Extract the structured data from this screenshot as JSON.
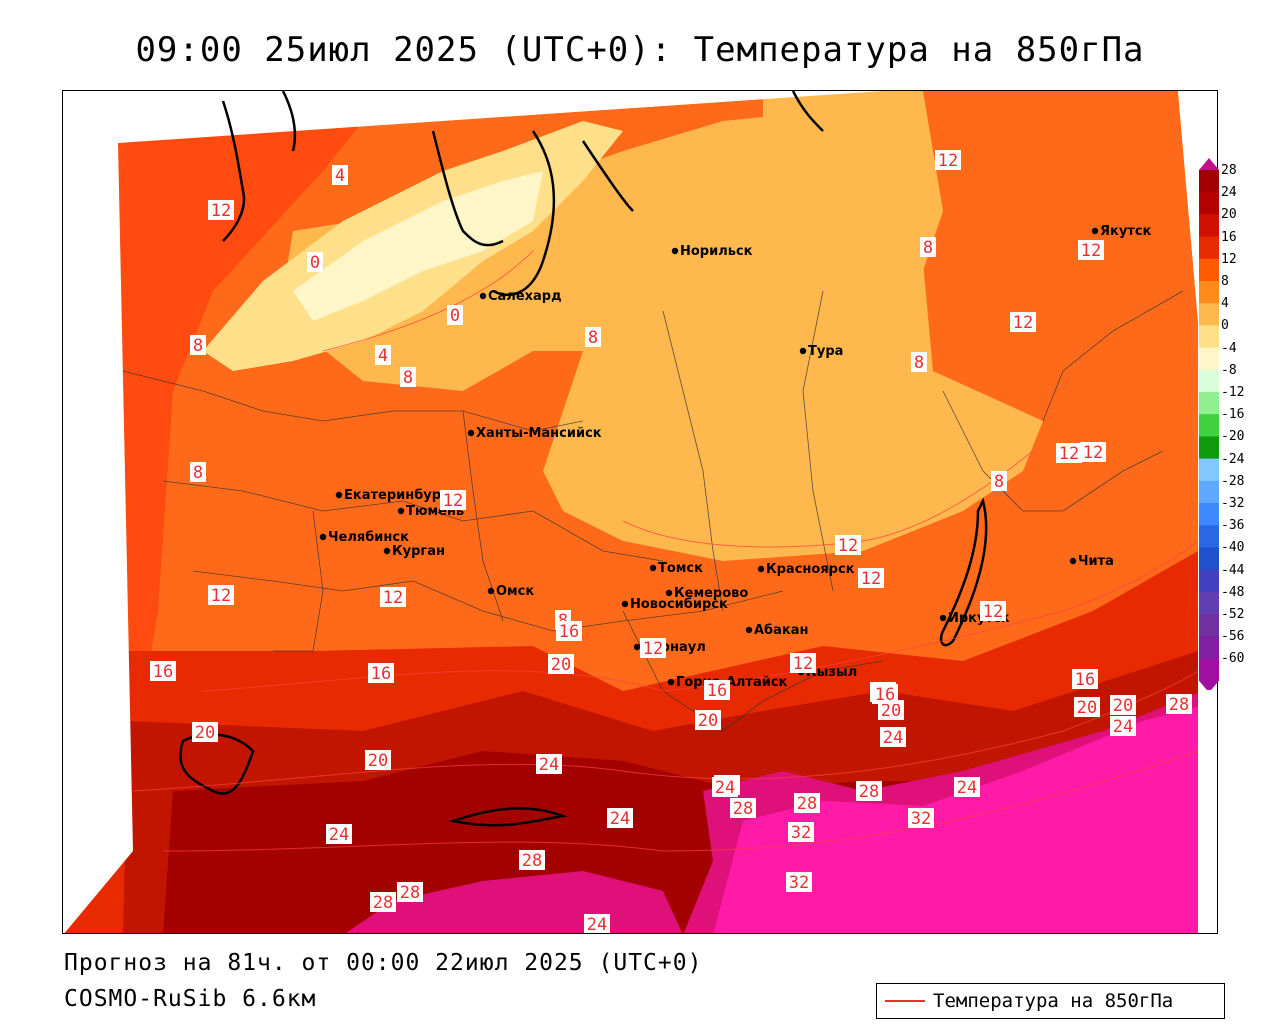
{
  "header": {
    "title": "09:00 25июл 2025 (UTC+0): Температура на 850гПа"
  },
  "footer": {
    "forecast": "Прогноз на 81ч. от 00:00 22июл 2025 (UTC+0)",
    "model": "COSMO-RuSib 6.6км"
  },
  "legend": {
    "line_label": "Температура на 850гПа",
    "line_color": "#e83030"
  },
  "colorbar": {
    "ticks": [
      "28",
      "24",
      "20",
      "16",
      "12",
      "8",
      "4",
      "0",
      "-4",
      "-8",
      "-12",
      "-16",
      "-20",
      "-24",
      "-28",
      "-32",
      "-36",
      "-40",
      "-44",
      "-48",
      "-52",
      "-56",
      "-60"
    ],
    "colors": [
      "#a00000",
      "#b50000",
      "#d01000",
      "#e82a00",
      "#ff5a00",
      "#ff8c1a",
      "#ffb84d",
      "#ffe08a",
      "#fff6c8",
      "#d8ffd8",
      "#90f090",
      "#40d040",
      "#109a10",
      "#80c8ff",
      "#60a8ff",
      "#4088ff",
      "#2a68e8",
      "#2050d0",
      "#4040c0",
      "#6040b0",
      "#7030a0",
      "#8020a0",
      "#a010a0"
    ]
  },
  "cities": [
    {
      "name": "Салехард"
    },
    {
      "name": "Норильск"
    },
    {
      "name": "Якутск"
    },
    {
      "name": "Тура"
    },
    {
      "name": "Ханты-Мансийск"
    },
    {
      "name": "Екатеринбург"
    },
    {
      "name": "Тюмень"
    },
    {
      "name": "Челябинск"
    },
    {
      "name": "Курган"
    },
    {
      "name": "Омск"
    },
    {
      "name": "Новосибирск"
    },
    {
      "name": "Томск"
    },
    {
      "name": "Кемерово"
    },
    {
      "name": "Красноярск"
    },
    {
      "name": "Абакан"
    },
    {
      "name": "Барнаул"
    },
    {
      "name": "Горно-Алтайск"
    },
    {
      "name": "Кызыл"
    },
    {
      "name": "Иркутск"
    },
    {
      "name": "Чита"
    }
  ],
  "contour_labels": [
    "12",
    "12",
    "8",
    "12",
    "12",
    "12",
    "12",
    "8",
    "8",
    "8",
    "8",
    "8",
    "8",
    "0",
    "0",
    "4",
    "4",
    "12",
    "12",
    "12",
    "12",
    "8",
    "12",
    "12",
    "16",
    "16",
    "16",
    "16",
    "20",
    "20",
    "20",
    "20",
    "20",
    "24",
    "24",
    "24",
    "24",
    "24",
    "24",
    "24",
    "24",
    "28",
    "28",
    "28",
    "28",
    "28",
    "28",
    "32",
    "32",
    "32",
    "12",
    "16",
    "16",
    "20",
    "24",
    "28",
    "24",
    "20",
    "16",
    "12"
  ]
}
